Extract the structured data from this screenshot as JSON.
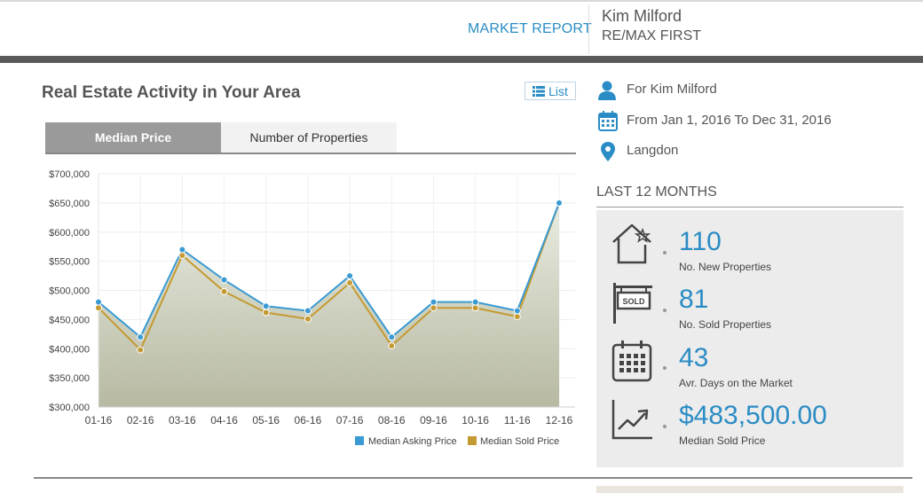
{
  "header": {
    "nav_link": "MARKET REPORT",
    "agent_name": "Kim Milford",
    "agent_office": "RE/MAX FIRST"
  },
  "section": {
    "title": "Real Estate Activity in Your Area",
    "list_button": "List",
    "tabs": [
      {
        "label": "Median Price",
        "active": true
      },
      {
        "label": "Number of Properties",
        "active": false
      }
    ]
  },
  "sidebar": {
    "for_text": "For Kim Milford",
    "date_range": "From Jan 1, 2016 To Dec 31, 2016",
    "location": "Langdon",
    "period_heading": "LAST 12 MONTHS",
    "stats": [
      {
        "icon": "house-star-icon",
        "value": "110",
        "label": "No. New Properties"
      },
      {
        "icon": "sold-sign-icon",
        "value": "81",
        "label": "No. Sold Properties"
      },
      {
        "icon": "calendar-icon",
        "value": "43",
        "label": "Avr. Days on the Market"
      },
      {
        "icon": "trend-chart-icon",
        "value": "$483,500.00",
        "label": "Median Sold Price"
      }
    ]
  },
  "colors": {
    "accent": "#2a8cc4",
    "asking": "#3a9ad3",
    "sold": "#c49a32"
  },
  "chart_data": {
    "type": "line",
    "categories": [
      "01-16",
      "02-16",
      "03-16",
      "04-16",
      "05-16",
      "06-16",
      "07-16",
      "08-16",
      "09-16",
      "10-16",
      "11-16",
      "12-16"
    ],
    "series": [
      {
        "name": "Median Asking Price",
        "values": [
          480000,
          420000,
          570000,
          518000,
          473000,
          465000,
          525000,
          420000,
          480000,
          480000,
          465000,
          650000
        ]
      },
      {
        "name": "Median Sold Price",
        "values": [
          470000,
          398000,
          560000,
          498000,
          462000,
          451000,
          513000,
          405000,
          470000,
          470000,
          455000,
          650000
        ]
      }
    ],
    "ylim": [
      300000,
      700000
    ],
    "yticks": [
      "$300,000",
      "$350,000",
      "$400,000",
      "$450,000",
      "$500,000",
      "$550,000",
      "$600,000",
      "$650,000",
      "$700,000"
    ],
    "legend_position": "bottom-right",
    "grid": true
  }
}
